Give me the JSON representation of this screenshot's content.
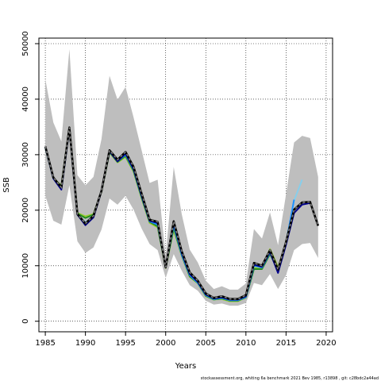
{
  "chart_data": {
    "type": "line",
    "title": "",
    "xlabel": "Years",
    "ylabel": "SSB",
    "xlim": [
      1984.2,
      2020.8
    ],
    "ylim": [
      -1900,
      51000
    ],
    "x_ticks": [
      1985,
      1990,
      1995,
      2000,
      2005,
      2010,
      2015,
      2020
    ],
    "y_ticks": [
      0,
      10000,
      20000,
      30000,
      40000,
      50000
    ],
    "grid": true,
    "grid_style": "dotted",
    "footer": "stockassessment.org, whiting 6a benchmark 2021 Bev 1985, r13898 , git: c28bdc2a44ad",
    "confidence_band": {
      "color": "#bebebe",
      "x": [
        1985,
        1986,
        1987,
        1988,
        1989,
        1990,
        1991,
        1992,
        1993,
        1994,
        1995,
        1996,
        1997,
        1998,
        1999,
        2000,
        2001,
        2002,
        2003,
        2004,
        2005,
        2006,
        2007,
        2008,
        2009,
        2010,
        2011,
        2012,
        2013,
        2014,
        2015,
        2016,
        2017,
        2018,
        2019
      ],
      "upper": [
        43600,
        35800,
        32400,
        49000,
        26300,
        24500,
        26000,
        32800,
        44200,
        39900,
        42200,
        36700,
        30800,
        24900,
        25500,
        11800,
        27800,
        19300,
        12900,
        10600,
        7300,
        5800,
        6300,
        5700,
        5700,
        6800,
        16600,
        14900,
        19600,
        13700,
        22900,
        32200,
        33400,
        33000,
        26000
      ],
      "lower": [
        22600,
        18100,
        17400,
        24500,
        14400,
        12300,
        13300,
        16500,
        22100,
        21000,
        22600,
        20100,
        16700,
        13900,
        12800,
        7800,
        12100,
        9100,
        6500,
        5500,
        3700,
        3000,
        3200,
        2800,
        2800,
        3300,
        6900,
        6500,
        8500,
        5800,
        8300,
        12800,
        13900,
        14100,
        11400
      ]
    },
    "series": [
      {
        "color": "#000000",
        "dashed": true,
        "x": [
          1985,
          1986,
          1987,
          1988,
          1989,
          1990,
          1991,
          1992,
          1993,
          1994,
          1995,
          1996,
          1997,
          1998,
          1999,
          2000,
          2001,
          2002,
          2003,
          2004,
          2005,
          2006,
          2007,
          2008,
          2009,
          2010,
          2011,
          2012,
          2013,
          2014,
          2015,
          2016,
          2017,
          2018,
          2019
        ],
        "values": [
          31500,
          25900,
          24100,
          34900,
          19300,
          17600,
          19000,
          23500,
          30800,
          29100,
          30500,
          27800,
          23000,
          18300,
          17900,
          9700,
          18000,
          12600,
          8800,
          7300,
          5000,
          4200,
          4500,
          4000,
          4000,
          4700,
          10500,
          10000,
          12800,
          9300,
          14300,
          20100,
          21400,
          21500,
          17200
        ]
      },
      {
        "color": "#00008b",
        "x": [
          1985,
          1986,
          1987,
          1988,
          1989,
          1990,
          1991,
          1992,
          1993,
          1994,
          1995,
          1996,
          1997,
          1998,
          1999,
          2000,
          2001,
          2002,
          2003,
          2004,
          2005,
          2006,
          2007,
          2008,
          2009,
          2010,
          2011,
          2012,
          2013,
          2014,
          2015,
          2016,
          2017,
          2018
        ],
        "values": [
          31400,
          25700,
          23700,
          34700,
          19200,
          17300,
          18700,
          23400,
          30600,
          28800,
          30200,
          27400,
          22600,
          18100,
          17700,
          9700,
          17700,
          12300,
          8500,
          7100,
          4800,
          4100,
          4300,
          3900,
          3900,
          4500,
          10200,
          9800,
          12500,
          8700,
          13800,
          19500,
          21000,
          21300
        ]
      },
      {
        "color": "#1e90ff",
        "x": [
          1985,
          1986,
          1987,
          1988,
          1989,
          1990,
          1991,
          1992,
          1993,
          1994,
          1995,
          1996,
          1997,
          1998,
          1999,
          2000,
          2001,
          2002,
          2003,
          2004,
          2005,
          2006,
          2007,
          2008,
          2009,
          2010,
          2011,
          2012,
          2013,
          2014,
          2015,
          2016
        ],
        "values": [
          31400,
          25800,
          23900,
          34800,
          19200,
          17600,
          18900,
          23500,
          30600,
          28800,
          30000,
          27300,
          22500,
          18000,
          17400,
          9700,
          17300,
          12000,
          8300,
          6900,
          4700,
          4000,
          4200,
          3800,
          3800,
          4400,
          10000,
          9700,
          12400,
          8900,
          14000,
          21900
        ]
      },
      {
        "color": "#87ceeb",
        "x": [
          1985,
          1986,
          1987,
          1988,
          1989,
          1990,
          1991,
          1992,
          1993,
          1994,
          1995,
          1996,
          1997,
          1998,
          1999,
          2000,
          2001,
          2002,
          2003,
          2004,
          2005,
          2006,
          2007,
          2008,
          2009,
          2010,
          2011,
          2012,
          2013,
          2014,
          2015,
          2016,
          2017
        ],
        "values": [
          31300,
          25700,
          23800,
          34700,
          19200,
          17800,
          19000,
          23500,
          30700,
          28900,
          30100,
          27400,
          22600,
          18100,
          17500,
          9700,
          17400,
          12100,
          8400,
          7000,
          4700,
          4000,
          4200,
          3800,
          3800,
          4400,
          10000,
          9700,
          12500,
          9000,
          14200,
          21700,
          25500
        ]
      },
      {
        "color": "#228b22",
        "x": [
          1985,
          1986,
          1987,
          1988,
          1989,
          1990,
          1991,
          1992,
          1993,
          1994,
          1995,
          1996,
          1997,
          1998,
          1999,
          2000,
          2001,
          2002,
          2003,
          2004,
          2005,
          2006,
          2007,
          2008,
          2009,
          2010,
          2011,
          2012,
          2013,
          2014,
          2015
        ],
        "values": [
          31300,
          25800,
          24300,
          34800,
          19400,
          18600,
          19200,
          23400,
          30500,
          28700,
          29800,
          27100,
          22300,
          17900,
          17100,
          9700,
          16800,
          11900,
          8100,
          6900,
          4600,
          3900,
          4100,
          3700,
          3700,
          4300,
          9400,
          9400,
          12100,
          9200,
          14100
        ]
      },
      {
        "color": "#9acd32",
        "x": [
          1985,
          1986,
          1987,
          1988,
          1989,
          1990,
          1991,
          1992,
          1993,
          1994,
          1995,
          1996,
          1997,
          1998,
          1999,
          2000,
          2001,
          2002,
          2003,
          2004,
          2005,
          2006,
          2007,
          2008,
          2009,
          2010,
          2011,
          2012,
          2013,
          2014
        ],
        "values": [
          31300,
          25800,
          24400,
          34900,
          19500,
          18900,
          19300,
          23300,
          30400,
          28600,
          29600,
          26900,
          22100,
          17700,
          16900,
          9600,
          16500,
          11800,
          8000,
          6800,
          4500,
          3900,
          4000,
          3600,
          3600,
          4300,
          9700,
          9700,
          13000,
          9800
        ]
      }
    ]
  }
}
